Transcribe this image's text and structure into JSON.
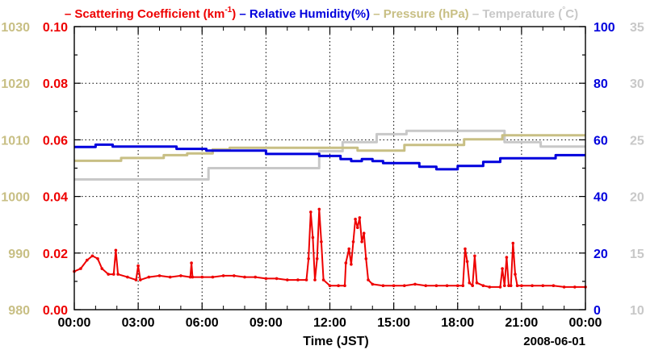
{
  "chart_data": {
    "type": "line",
    "title": "",
    "legend": [
      {
        "marker": "–",
        "name": "Scattering Coefficient (km",
        "sup": "-1",
        "close": ")",
        "color": "#ee0000"
      },
      {
        "marker": "–",
        "name": "Relative Humidity(%)",
        "color": "#0000dd"
      },
      {
        "marker": "–",
        "name": "Pressure (hPa)",
        "color": "#c8bf84"
      },
      {
        "marker": "–",
        "name": "Temperature (",
        "sup": "°",
        "close": "C)",
        "color": "#c8c8c8"
      }
    ],
    "xlabel": "Time (JST)",
    "date_label": "2008-06-01",
    "x_range": [
      0,
      24
    ],
    "x_ticks": [
      {
        "v": 0,
        "label": "00:00"
      },
      {
        "v": 3,
        "label": "03:00"
      },
      {
        "v": 6,
        "label": "06:00"
      },
      {
        "v": 9,
        "label": "09:00"
      },
      {
        "v": 12,
        "label": "12:00"
      },
      {
        "v": 15,
        "label": "15:00"
      },
      {
        "v": 18,
        "label": "18:00"
      },
      {
        "v": 21,
        "label": "21:00"
      },
      {
        "v": 24,
        "label": "00:00"
      }
    ],
    "axes": {
      "scattering": {
        "range": [
          0,
          0.1
        ],
        "ticks": [
          "0.00",
          "0.02",
          "0.04",
          "0.06",
          "0.08",
          "0.10"
        ],
        "color": "#ee0000"
      },
      "pressure": {
        "range": [
          980,
          1030
        ],
        "ticks": [
          "980",
          "990",
          "1000",
          "1010",
          "1020",
          "1030"
        ],
        "color": "#c8bf84"
      },
      "humidity": {
        "range": [
          0,
          100
        ],
        "ticks": [
          "0",
          "20",
          "40",
          "60",
          "80",
          "100"
        ],
        "color": "#0000dd"
      },
      "temperature": {
        "range": [
          10,
          35
        ],
        "ticks": [
          "10",
          "15",
          "20",
          "25",
          "30",
          "35"
        ],
        "color": "#c8c8c8"
      }
    },
    "grid": true,
    "series": [
      {
        "name": "Temperature",
        "axis": "temperature",
        "color": "#c8c8c8",
        "step": true,
        "points": [
          [
            0,
            21.5
          ],
          [
            6.3,
            21.5
          ],
          [
            6.3,
            22.5
          ],
          [
            11.5,
            22.5
          ],
          [
            11.5,
            24.0
          ],
          [
            12.6,
            24.0
          ],
          [
            12.6,
            24.8
          ],
          [
            14.2,
            24.8
          ],
          [
            14.2,
            25.5
          ],
          [
            15.6,
            25.5
          ],
          [
            15.6,
            25.8
          ],
          [
            20.2,
            25.8
          ],
          [
            20.2,
            24.8
          ],
          [
            21.9,
            24.8
          ],
          [
            21.9,
            24.4
          ],
          [
            24,
            24.4
          ]
        ]
      },
      {
        "name": "Pressure",
        "axis": "pressure",
        "color": "#c8bf84",
        "step": true,
        "points": [
          [
            0,
            1006.3
          ],
          [
            2.2,
            1006.3
          ],
          [
            2.2,
            1006.8
          ],
          [
            4.2,
            1006.8
          ],
          [
            4.2,
            1007.3
          ],
          [
            5.3,
            1007.3
          ],
          [
            5.3,
            1007.6
          ],
          [
            6.5,
            1007.6
          ],
          [
            6.5,
            1008.3
          ],
          [
            7.3,
            1008.3
          ],
          [
            7.3,
            1008.6
          ],
          [
            13.3,
            1008.6
          ],
          [
            13.3,
            1008.1
          ],
          [
            15.5,
            1008.1
          ],
          [
            15.5,
            1009.1
          ],
          [
            18.3,
            1009.1
          ],
          [
            18.3,
            1010.1
          ],
          [
            20.1,
            1010.1
          ],
          [
            20.1,
            1010.8
          ],
          [
            24,
            1010.8
          ]
        ]
      },
      {
        "name": "Relative Humidity",
        "axis": "humidity",
        "color": "#0000dd",
        "step": true,
        "points": [
          [
            0,
            57.5
          ],
          [
            1.0,
            57.5
          ],
          [
            1.0,
            58.3
          ],
          [
            1.8,
            58.3
          ],
          [
            1.8,
            57.6
          ],
          [
            4.8,
            57.6
          ],
          [
            4.8,
            56.8
          ],
          [
            6.2,
            56.8
          ],
          [
            6.2,
            56.2
          ],
          [
            9.0,
            56.2
          ],
          [
            9.0,
            55.0
          ],
          [
            11.5,
            55.0
          ],
          [
            11.5,
            54.3
          ],
          [
            12.5,
            54.3
          ],
          [
            12.5,
            53.2
          ],
          [
            13.0,
            53.2
          ],
          [
            13.0,
            52.5
          ],
          [
            13.5,
            52.5
          ],
          [
            13.5,
            53.2
          ],
          [
            14.0,
            53.2
          ],
          [
            14.0,
            52.5
          ],
          [
            14.5,
            52.5
          ],
          [
            14.5,
            51.8
          ],
          [
            16.2,
            51.8
          ],
          [
            16.2,
            50.5
          ],
          [
            17.0,
            50.5
          ],
          [
            17.0,
            49.6
          ],
          [
            18.0,
            49.6
          ],
          [
            18.0,
            50.8
          ],
          [
            19.2,
            50.8
          ],
          [
            19.2,
            52.2
          ],
          [
            20.0,
            52.2
          ],
          [
            20.0,
            53.5
          ],
          [
            22.6,
            53.5
          ],
          [
            22.6,
            54.6
          ],
          [
            24,
            54.6
          ]
        ]
      },
      {
        "name": "Scattering Coefficient",
        "axis": "scattering",
        "color": "#ee0000",
        "step": false,
        "markers": true,
        "points": [
          [
            0.0,
            0.0135
          ],
          [
            0.3,
            0.0145
          ],
          [
            0.6,
            0.0175
          ],
          [
            0.85,
            0.019
          ],
          [
            1.1,
            0.018
          ],
          [
            1.3,
            0.0145
          ],
          [
            1.6,
            0.0125
          ],
          [
            1.85,
            0.0125
          ],
          [
            1.95,
            0.021
          ],
          [
            2.05,
            0.0125
          ],
          [
            2.5,
            0.0115
          ],
          [
            2.9,
            0.0105
          ],
          [
            3.0,
            0.0155
          ],
          [
            3.1,
            0.0105
          ],
          [
            3.5,
            0.0115
          ],
          [
            4.0,
            0.012
          ],
          [
            4.5,
            0.0115
          ],
          [
            5.0,
            0.012
          ],
          [
            5.45,
            0.0115
          ],
          [
            5.5,
            0.0165
          ],
          [
            5.55,
            0.0115
          ],
          [
            6.0,
            0.0115
          ],
          [
            6.5,
            0.0115
          ],
          [
            7.0,
            0.012
          ],
          [
            7.5,
            0.012
          ],
          [
            8.0,
            0.0115
          ],
          [
            8.5,
            0.0115
          ],
          [
            9.0,
            0.011
          ],
          [
            9.5,
            0.011
          ],
          [
            10.0,
            0.0105
          ],
          [
            10.5,
            0.0105
          ],
          [
            10.9,
            0.0105
          ],
          [
            11.0,
            0.018
          ],
          [
            11.1,
            0.0345
          ],
          [
            11.2,
            0.0255
          ],
          [
            11.3,
            0.0105
          ],
          [
            11.4,
            0.018
          ],
          [
            11.5,
            0.0355
          ],
          [
            11.6,
            0.024
          ],
          [
            11.7,
            0.0105
          ],
          [
            12.0,
            0.0085
          ],
          [
            12.4,
            0.0085
          ],
          [
            12.7,
            0.0085
          ],
          [
            12.75,
            0.0165
          ],
          [
            12.9,
            0.0215
          ],
          [
            13.0,
            0.016
          ],
          [
            13.1,
            0.024
          ],
          [
            13.2,
            0.032
          ],
          [
            13.3,
            0.029
          ],
          [
            13.4,
            0.0325
          ],
          [
            13.5,
            0.024
          ],
          [
            13.6,
            0.027
          ],
          [
            13.7,
            0.018
          ],
          [
            13.8,
            0.0105
          ],
          [
            14.0,
            0.009
          ],
          [
            14.5,
            0.0085
          ],
          [
            15.0,
            0.0085
          ],
          [
            15.5,
            0.0085
          ],
          [
            16.0,
            0.009
          ],
          [
            16.5,
            0.0085
          ],
          [
            17.0,
            0.0085
          ],
          [
            17.5,
            0.0085
          ],
          [
            18.0,
            0.0085
          ],
          [
            18.25,
            0.0085
          ],
          [
            18.35,
            0.0215
          ],
          [
            18.45,
            0.017
          ],
          [
            18.55,
            0.0095
          ],
          [
            18.7,
            0.0085
          ],
          [
            18.8,
            0.019
          ],
          [
            18.9,
            0.0095
          ],
          [
            19.2,
            0.0085
          ],
          [
            19.5,
            0.008
          ],
          [
            20.0,
            0.008
          ],
          [
            20.1,
            0.0145
          ],
          [
            20.2,
            0.0085
          ],
          [
            20.3,
            0.0185
          ],
          [
            20.4,
            0.0085
          ],
          [
            20.5,
            0.0085
          ],
          [
            20.6,
            0.0235
          ],
          [
            20.7,
            0.0125
          ],
          [
            20.8,
            0.0085
          ],
          [
            21.0,
            0.0085
          ],
          [
            21.5,
            0.0085
          ],
          [
            22.0,
            0.0085
          ],
          [
            22.5,
            0.0085
          ],
          [
            23.0,
            0.008
          ],
          [
            23.5,
            0.008
          ],
          [
            24.0,
            0.008
          ]
        ]
      }
    ]
  }
}
